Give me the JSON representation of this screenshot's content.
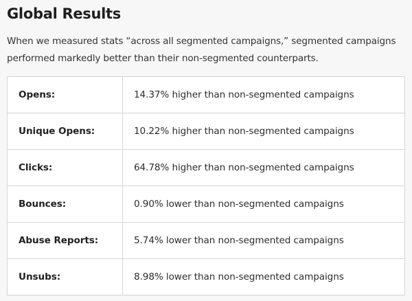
{
  "title": "Global Results",
  "intro": "When we measured stats “across all segmented campaigns,” segmented campaigns performed markedly better than their non-segmented counterparts.",
  "rows": [
    {
      "metric": "Opens:",
      "result": "14.37% higher than non-segmented campaigns"
    },
    {
      "metric": "Unique Opens:",
      "result": "10.22% higher than non-segmented campaigns"
    },
    {
      "metric": "Clicks:",
      "result": "64.78% higher than non-segmented campaigns"
    },
    {
      "metric": "Bounces:",
      "result": "0.90% lower than non-segmented campaigns"
    },
    {
      "metric": "Abuse Reports:",
      "result": "5.74% lower than non-segmented campaigns"
    },
    {
      "metric": "Unsubs:",
      "result": "8.98% lower than non-segmented campaigns"
    }
  ]
}
